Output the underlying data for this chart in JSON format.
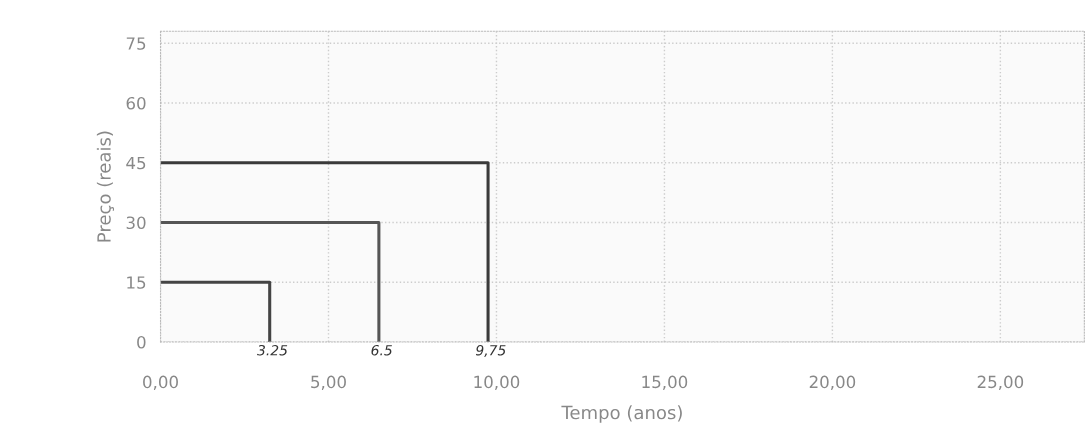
{
  "chart_data": {
    "type": "line",
    "xlabel": "Tempo (anos)",
    "ylabel": "Preço (reais)",
    "series": [
      {
        "x": [
          0,
          3.25,
          3.25
        ],
        "values": [
          15,
          15,
          0
        ],
        "color": "#444444"
      },
      {
        "x": [
          0,
          6.5,
          6.5
        ],
        "values": [
          30,
          30,
          0
        ],
        "color": "#555555"
      },
      {
        "x": [
          0,
          9.75,
          9.75
        ],
        "values": [
          45,
          45,
          0
        ],
        "color": "#3a3a3a"
      }
    ],
    "xlim": [
      0,
      27.5
    ],
    "ylim": [
      0,
      78
    ],
    "xticks": [
      {
        "value": 0,
        "label": "0,00"
      },
      {
        "value": 5,
        "label": "5,00"
      },
      {
        "value": 10,
        "label": "10,00"
      },
      {
        "value": 15,
        "label": "15,00"
      },
      {
        "value": 20,
        "label": "20,00"
      },
      {
        "value": 25,
        "label": "25,00"
      }
    ],
    "yticks": [
      0,
      15,
      30,
      45,
      60,
      75
    ],
    "grid": true,
    "annotations": [
      {
        "text": "3.25",
        "x": 3.25,
        "y": 0
      },
      {
        "text": "6.5",
        "x": 6.5,
        "y": 0
      },
      {
        "text": "9,75",
        "x": 9.75,
        "y": 0
      }
    ]
  }
}
